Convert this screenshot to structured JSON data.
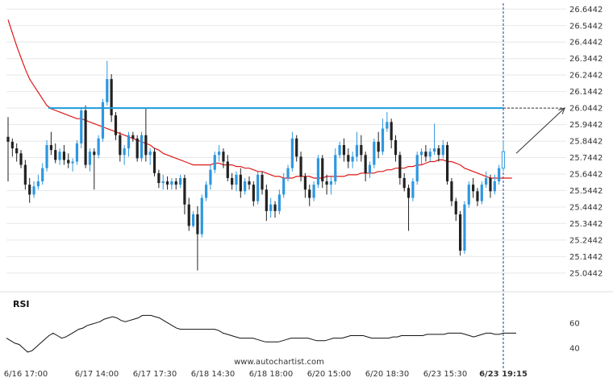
{
  "chart_data": {
    "type": "candlestick",
    "instrument": "",
    "price_axis": {
      "ticks": [
        "26.6442",
        "26.5442",
        "26.4442",
        "26.3442",
        "26.2442",
        "26.1442",
        "26.0442",
        "25.9442",
        "25.8442",
        "25.7442",
        "25.6442",
        "25.5442",
        "25.4442",
        "25.3442",
        "25.2442",
        "25.1442",
        "25.0442"
      ],
      "range": [
        24.98,
        26.67
      ]
    },
    "x_axis": {
      "ticks": [
        "6/16 17:00",
        "6/17 14:00",
        "6/17 17:30",
        "6/18 14:30",
        "6/18 18:00",
        "6/20 15:00",
        "6/20 18:30",
        "6/23 15:30",
        "6/23 19:15"
      ],
      "highlighted_tick": "6/23 19:15"
    },
    "resistance_level": 26.0442,
    "candles": [
      [
        25.87,
        25.99,
        25.6,
        25.84
      ],
      [
        25.84,
        25.86,
        25.75,
        25.8
      ],
      [
        25.8,
        25.83,
        25.72,
        25.77
      ],
      [
        25.77,
        25.79,
        25.68,
        25.7
      ],
      [
        25.7,
        25.73,
        25.55,
        25.58
      ],
      [
        25.58,
        25.62,
        25.47,
        25.52
      ],
      [
        25.52,
        25.6,
        25.5,
        25.57
      ],
      [
        25.57,
        25.64,
        25.55,
        25.6
      ],
      [
        25.6,
        25.71,
        25.58,
        25.68
      ],
      [
        25.68,
        25.85,
        25.66,
        25.82
      ],
      [
        25.82,
        25.9,
        25.76,
        25.79
      ],
      [
        25.79,
        25.83,
        25.71,
        25.73
      ],
      [
        25.73,
        25.8,
        25.7,
        25.78
      ],
      [
        25.78,
        25.82,
        25.7,
        25.73
      ],
      [
        25.73,
        25.77,
        25.68,
        25.71
      ],
      [
        25.71,
        25.74,
        25.66,
        25.72
      ],
      [
        25.72,
        25.85,
        25.7,
        25.83
      ],
      [
        25.83,
        26.05,
        25.8,
        26.03
      ],
      [
        26.03,
        26.06,
        25.68,
        25.7
      ],
      [
        25.7,
        25.8,
        25.66,
        25.78
      ],
      [
        25.78,
        25.8,
        25.55,
        25.76
      ],
      [
        25.76,
        25.88,
        25.74,
        25.86
      ],
      [
        25.86,
        26.1,
        25.84,
        26.08
      ],
      [
        26.08,
        26.33,
        26.06,
        26.22
      ],
      [
        26.22,
        26.25,
        25.96,
        26.0
      ],
      [
        26.0,
        26.02,
        25.85,
        25.88
      ],
      [
        25.88,
        25.9,
        25.72,
        25.76
      ],
      [
        25.76,
        25.82,
        25.7,
        25.8
      ],
      [
        25.8,
        25.9,
        25.75,
        25.88
      ],
      [
        25.88,
        25.9,
        25.84,
        25.86
      ],
      [
        25.86,
        25.88,
        25.72,
        25.74
      ],
      [
        25.74,
        25.9,
        25.72,
        25.88
      ],
      [
        25.88,
        26.04,
        25.72,
        25.76
      ],
      [
        25.76,
        25.8,
        25.7,
        25.78
      ],
      [
        25.78,
        25.8,
        25.63,
        25.65
      ],
      [
        25.65,
        25.67,
        25.56,
        25.59
      ],
      [
        25.59,
        25.64,
        25.55,
        25.6
      ],
      [
        25.6,
        25.63,
        25.55,
        25.58
      ],
      [
        25.58,
        25.62,
        25.55,
        25.6
      ],
      [
        25.6,
        25.62,
        25.55,
        25.58
      ],
      [
        25.58,
        25.64,
        25.56,
        25.62
      ],
      [
        25.62,
        25.64,
        25.4,
        25.46
      ],
      [
        25.46,
        25.5,
        25.3,
        25.33
      ],
      [
        25.33,
        25.42,
        25.32,
        25.4
      ],
      [
        25.4,
        25.45,
        25.06,
        25.28
      ],
      [
        25.28,
        25.52,
        25.26,
        25.5
      ],
      [
        25.5,
        25.6,
        25.48,
        25.58
      ],
      [
        25.58,
        25.7,
        25.55,
        25.67
      ],
      [
        25.67,
        25.78,
        25.65,
        25.76
      ],
      [
        25.76,
        25.82,
        25.72,
        25.78
      ],
      [
        25.78,
        25.8,
        25.68,
        25.72
      ],
      [
        25.72,
        25.76,
        25.6,
        25.62
      ],
      [
        25.62,
        25.65,
        25.55,
        25.58
      ],
      [
        25.58,
        25.66,
        25.54,
        25.64
      ],
      [
        25.64,
        25.68,
        25.5,
        25.54
      ],
      [
        25.54,
        25.62,
        25.52,
        25.6
      ],
      [
        25.6,
        25.63,
        25.55,
        25.58
      ],
      [
        25.58,
        25.6,
        25.45,
        25.48
      ],
      [
        25.48,
        25.66,
        25.46,
        25.64
      ],
      [
        25.64,
        25.66,
        25.52,
        25.55
      ],
      [
        25.55,
        25.58,
        25.36,
        25.42
      ],
      [
        25.42,
        25.5,
        25.38,
        25.46
      ],
      [
        25.46,
        25.48,
        25.38,
        25.42
      ],
      [
        25.42,
        25.55,
        25.4,
        25.52
      ],
      [
        25.52,
        25.65,
        25.5,
        25.62
      ],
      [
        25.62,
        25.7,
        25.6,
        25.68
      ],
      [
        25.68,
        25.9,
        25.66,
        25.86
      ],
      [
        25.86,
        25.88,
        25.72,
        25.75
      ],
      [
        25.75,
        25.78,
        25.6,
        25.63
      ],
      [
        25.63,
        25.65,
        25.5,
        25.55
      ],
      [
        25.55,
        25.58,
        25.45,
        25.5
      ],
      [
        25.5,
        25.6,
        25.48,
        25.58
      ],
      [
        25.58,
        25.76,
        25.56,
        25.74
      ],
      [
        25.74,
        25.76,
        25.56,
        25.6
      ],
      [
        25.6,
        25.64,
        25.52,
        25.58
      ],
      [
        25.58,
        25.63,
        25.52,
        25.6
      ],
      [
        25.6,
        25.8,
        25.58,
        25.76
      ],
      [
        25.76,
        25.84,
        25.74,
        25.82
      ],
      [
        25.82,
        25.86,
        25.72,
        25.76
      ],
      [
        25.76,
        25.8,
        25.68,
        25.72
      ],
      [
        25.72,
        25.78,
        25.68,
        25.75
      ],
      [
        25.75,
        25.9,
        25.72,
        25.82
      ],
      [
        25.82,
        25.88,
        25.72,
        25.76
      ],
      [
        25.76,
        25.78,
        25.6,
        25.65
      ],
      [
        25.65,
        25.72,
        25.62,
        25.7
      ],
      [
        25.7,
        25.86,
        25.68,
        25.84
      ],
      [
        25.84,
        25.9,
        25.74,
        25.78
      ],
      [
        25.78,
        25.98,
        25.76,
        25.92
      ],
      [
        25.92,
        26.02,
        25.9,
        25.96
      ],
      [
        25.96,
        25.98,
        25.8,
        25.85
      ],
      [
        25.85,
        25.88,
        25.72,
        25.76
      ],
      [
        25.76,
        25.78,
        25.58,
        25.62
      ],
      [
        25.62,
        25.65,
        25.54,
        25.56
      ],
      [
        25.56,
        25.58,
        25.3,
        25.5
      ],
      [
        25.5,
        25.62,
        25.48,
        25.6
      ],
      [
        25.6,
        25.78,
        25.58,
        25.76
      ],
      [
        25.76,
        25.8,
        25.7,
        25.78
      ],
      [
        25.78,
        25.82,
        25.72,
        25.75
      ],
      [
        25.75,
        25.8,
        25.72,
        25.78
      ],
      [
        25.78,
        25.95,
        25.76,
        25.8
      ],
      [
        25.8,
        25.82,
        25.72,
        25.76
      ],
      [
        25.76,
        25.85,
        25.74,
        25.82
      ],
      [
        25.82,
        25.84,
        25.58,
        25.6
      ],
      [
        25.6,
        25.62,
        25.45,
        25.48
      ],
      [
        25.48,
        25.5,
        25.36,
        25.4
      ],
      [
        25.4,
        25.42,
        25.15,
        25.18
      ],
      [
        25.18,
        25.48,
        25.16,
        25.46
      ],
      [
        25.46,
        25.6,
        25.44,
        25.58
      ],
      [
        25.58,
        25.62,
        25.5,
        25.54
      ],
      [
        25.54,
        25.56,
        25.45,
        25.48
      ],
      [
        25.48,
        25.6,
        25.46,
        25.58
      ],
      [
        25.58,
        25.66,
        25.56,
        25.62
      ],
      [
        25.62,
        25.64,
        25.5,
        25.54
      ],
      [
        25.54,
        25.64,
        25.52,
        25.6
      ],
      [
        25.6,
        25.7,
        25.58,
        25.68
      ],
      [
        25.68,
        25.85,
        25.66,
        25.78
      ]
    ],
    "moving_average": [
      26.58,
      26.5,
      26.42,
      26.35,
      26.28,
      26.22,
      26.18,
      26.14,
      26.1,
      26.06,
      26.04,
      26.03,
      26.02,
      26.01,
      26.0,
      25.99,
      25.98,
      25.98,
      25.97,
      25.96,
      25.95,
      25.94,
      25.93,
      25.92,
      25.91,
      25.9,
      25.89,
      25.88,
      25.87,
      25.86,
      25.85,
      25.84,
      25.83,
      25.82,
      25.8,
      25.79,
      25.77,
      25.76,
      25.75,
      25.74,
      25.73,
      25.72,
      25.71,
      25.7,
      25.7,
      25.7,
      25.7,
      25.7,
      25.71,
      25.71,
      25.7,
      25.7,
      25.7,
      25.69,
      25.69,
      25.68,
      25.68,
      25.67,
      25.66,
      25.66,
      25.65,
      25.64,
      25.63,
      25.63,
      25.62,
      25.62,
      25.62,
      25.63,
      25.63,
      25.63,
      25.63,
      25.62,
      25.62,
      25.62,
      25.63,
      25.63,
      25.63,
      25.63,
      25.63,
      25.64,
      25.64,
      25.64,
      25.65,
      25.65,
      25.65,
      25.65,
      25.66,
      25.66,
      25.67,
      25.67,
      25.68,
      25.68,
      25.68,
      25.69,
      25.69,
      25.7,
      25.7,
      25.71,
      25.72,
      25.72,
      25.73,
      25.73,
      25.72,
      25.72,
      25.71,
      25.7,
      25.68,
      25.67,
      25.66,
      25.65,
      25.64,
      25.63,
      25.62,
      25.62,
      25.62,
      25.62,
      25.62,
      25.62
    ],
    "projection": {
      "from": {
        "index": 118,
        "price": 25.77
      },
      "to": {
        "index": 129,
        "price": 26.0442
      }
    },
    "rsi": {
      "label": "RSI",
      "ticks": [
        "60",
        "40"
      ],
      "range": [
        35,
        72
      ],
      "values": [
        48,
        46,
        44,
        43,
        40,
        37,
        38,
        41,
        44,
        47,
        50,
        52,
        50,
        48,
        49,
        51,
        53,
        55,
        56,
        58,
        59,
        60,
        61,
        63,
        64,
        65,
        64,
        62,
        61,
        62,
        63,
        64,
        66,
        66,
        66,
        65,
        64,
        62,
        60,
        58,
        56,
        55,
        55,
        55,
        55,
        55,
        55,
        55,
        55,
        55,
        54,
        52,
        51,
        50,
        49,
        48,
        48,
        48,
        48,
        47,
        46,
        45,
        45,
        45,
        45,
        46,
        47,
        48,
        48,
        48,
        48,
        48,
        47,
        46,
        46,
        46,
        47,
        48,
        48,
        48,
        49,
        50,
        50,
        50,
        50,
        49,
        48,
        48,
        48,
        48,
        48,
        49,
        49,
        50,
        50,
        50,
        50,
        50,
        50,
        51,
        51,
        51,
        51,
        51,
        52,
        52,
        52,
        52,
        51,
        50,
        49,
        50,
        51,
        52,
        52,
        51,
        51,
        52,
        52,
        52,
        52
      ]
    },
    "watermark": "www.autochartist.com",
    "colors": {
      "bull": "#2e97e0",
      "bear": "#222222",
      "moving_average": "#e01818",
      "resistance": "#1d9bdb",
      "projection": "#333333",
      "rsi": "#111111",
      "grid": "#e8e8e8"
    }
  }
}
